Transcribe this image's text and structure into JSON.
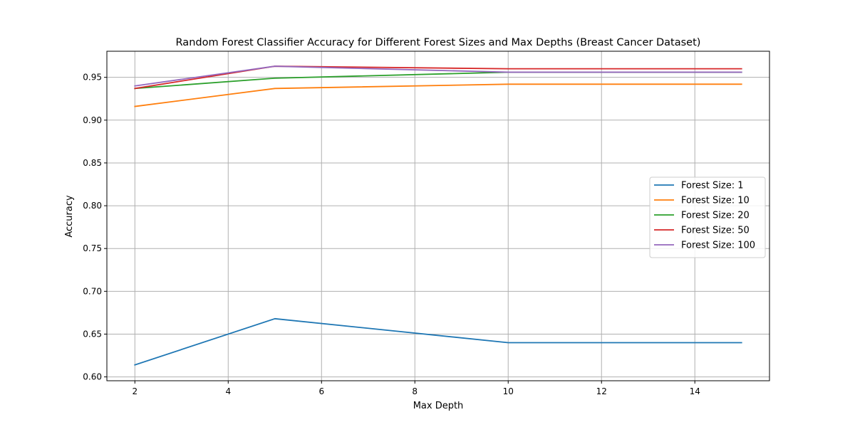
{
  "chart_data": {
    "type": "line",
    "title": "Random Forest Classifier Accuracy for Different Forest Sizes and Max Depths (Breast Cancer Dataset)",
    "xlabel": "Max Depth",
    "ylabel": "Accuracy",
    "x": [
      2,
      5,
      10,
      15
    ],
    "xlim": [
      1.4,
      15.6
    ],
    "ylim": [
      0.5955,
      0.9805
    ],
    "xticks": [
      2,
      4,
      6,
      8,
      10,
      12,
      14
    ],
    "yticks": [
      0.6,
      0.65,
      0.7,
      0.75,
      0.8,
      0.85,
      0.9,
      0.95
    ],
    "ytick_labels": [
      "0.60",
      "0.65",
      "0.70",
      "0.75",
      "0.80",
      "0.85",
      "0.90",
      "0.95"
    ],
    "grid": true,
    "legend_position": "center-right",
    "series": [
      {
        "name": "Forest Size: 1",
        "color": "#1f77b4",
        "values": [
          0.614,
          0.668,
          0.64,
          0.64
        ]
      },
      {
        "name": "Forest Size: 10",
        "color": "#ff7f0e",
        "values": [
          0.916,
          0.937,
          0.942,
          0.942
        ]
      },
      {
        "name": "Forest Size: 20",
        "color": "#2ca02c",
        "values": [
          0.937,
          0.949,
          0.956,
          0.956
        ]
      },
      {
        "name": "Forest Size: 50",
        "color": "#d62728",
        "values": [
          0.937,
          0.963,
          0.96,
          0.96
        ]
      },
      {
        "name": "Forest Size: 100",
        "color": "#9467bd",
        "values": [
          0.94,
          0.963,
          0.956,
          0.956
        ]
      }
    ]
  }
}
